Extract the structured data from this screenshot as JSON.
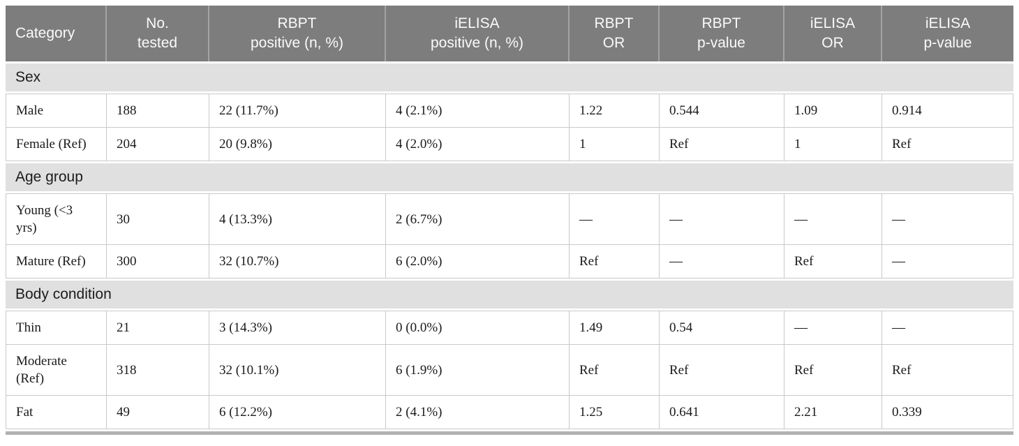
{
  "table": {
    "columns": [
      {
        "label": "Category"
      },
      {
        "label": "No.\ntested"
      },
      {
        "label": "RBPT\npositive (n, %)"
      },
      {
        "label": "iELISA\npositive (n, %)"
      },
      {
        "label": "RBPT\nOR"
      },
      {
        "label": "RBPT\np-value"
      },
      {
        "label": "iELISA\nOR"
      },
      {
        "label": "iELISA\np-value"
      }
    ],
    "sections": [
      {
        "title": "Sex",
        "rows": [
          {
            "cells": [
              "Male",
              "188",
              "22 (11.7%)",
              "4 (2.1%)",
              "1.22",
              "0.544",
              "1.09",
              "0.914"
            ]
          },
          {
            "cells": [
              "Female (Ref)",
              "204",
              "20 (9.8%)",
              "4 (2.0%)",
              "1",
              "Ref",
              "1",
              "Ref"
            ]
          }
        ]
      },
      {
        "title": "Age group",
        "rows": [
          {
            "cells": [
              "Young (<3 yrs)",
              "30",
              "4 (13.3%)",
              "2 (6.7%)",
              "—",
              "—",
              "—",
              "—"
            ]
          },
          {
            "cells": [
              "Mature (Ref)",
              "300",
              "32 (10.7%)",
              "6 (2.0%)",
              "Ref",
              "—",
              "Ref",
              "—"
            ]
          }
        ]
      },
      {
        "title": "Body condition",
        "rows": [
          {
            "cells": [
              "Thin",
              "21",
              "3 (14.3%)",
              "0 (0.0%)",
              "1.49",
              "0.54",
              "—",
              "—"
            ]
          },
          {
            "cells": [
              "Moderate (Ref)",
              "318",
              "32 (10.1%)",
              "6 (1.9%)",
              "Ref",
              "Ref",
              "Ref",
              "Ref"
            ]
          },
          {
            "cells": [
              "Fat",
              "49",
              "6 (12.2%)",
              "2 (4.1%)",
              "1.25",
              "0.641",
              "2.21",
              "0.339"
            ]
          }
        ]
      }
    ]
  },
  "colors": {
    "header_bg": "#7d7d7d",
    "header_text": "#fafafa",
    "header_divider": "#a3a3a3",
    "section_bg": "#e0e0e0",
    "grid": "#c9c9c9",
    "data_text": "#1a1a1a",
    "bottom_strip": "#b2b2b2"
  }
}
